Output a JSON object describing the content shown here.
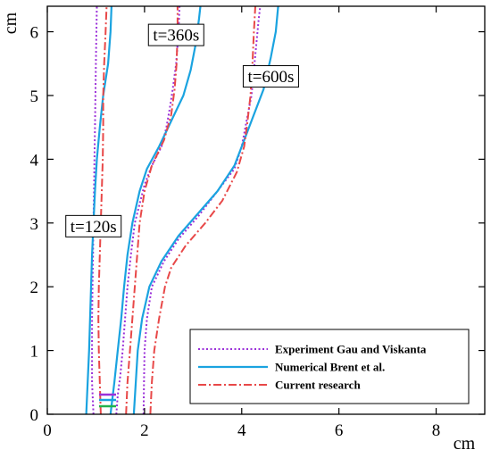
{
  "chart_data": {
    "type": "line",
    "title": "",
    "xlabel": "cm",
    "ylabel": "cm",
    "xlim": [
      0,
      9
    ],
    "ylim": [
      0,
      6.4
    ],
    "xticks": [
      0,
      2,
      4,
      6,
      8
    ],
    "yticks": [
      0,
      1,
      2,
      3,
      4,
      5,
      6
    ],
    "grid": false,
    "legend_position": "bottom-right",
    "series": [
      {
        "name": "Experiment Gau and Viskanta",
        "color": "#9b30d9",
        "style": "dotted",
        "curves": [
          [
            [
              0.95,
              0
            ],
            [
              0.92,
              0.5
            ],
            [
              0.92,
              1.0
            ],
            [
              0.92,
              1.5
            ],
            [
              0.93,
              2.0
            ],
            [
              0.94,
              2.5
            ],
            [
              0.95,
              3.0
            ],
            [
              0.96,
              3.5
            ],
            [
              0.97,
              4.0
            ],
            [
              0.98,
              4.5
            ],
            [
              0.99,
              5.0
            ],
            [
              1.0,
              5.5
            ],
            [
              1.01,
              6.0
            ],
            [
              1.02,
              6.4
            ]
          ],
          [
            [
              1.42,
              0
            ],
            [
              1.45,
              0.3
            ],
            [
              1.5,
              0.6
            ],
            [
              1.55,
              1.0
            ],
            [
              1.6,
              1.5
            ],
            [
              1.65,
              2.0
            ],
            [
              1.72,
              2.5
            ],
            [
              1.8,
              3.0
            ],
            [
              1.9,
              3.3
            ],
            [
              2.0,
              3.6
            ],
            [
              2.15,
              3.9
            ],
            [
              2.35,
              4.2
            ],
            [
              2.45,
              4.5
            ],
            [
              2.52,
              4.8
            ],
            [
              2.58,
              5.1
            ],
            [
              2.65,
              5.5
            ],
            [
              2.7,
              6.0
            ],
            [
              2.72,
              6.4
            ]
          ],
          [
            [
              1.98,
              0
            ],
            [
              1.99,
              0.5
            ],
            [
              2.0,
              1.0
            ],
            [
              2.05,
              1.5
            ],
            [
              2.15,
              2.0
            ],
            [
              2.4,
              2.4
            ],
            [
              2.7,
              2.75
            ],
            [
              3.1,
              3.1
            ],
            [
              3.5,
              3.5
            ],
            [
              3.85,
              3.85
            ],
            [
              4.0,
              4.2
            ],
            [
              4.1,
              4.6
            ],
            [
              4.2,
              5.0
            ],
            [
              4.25,
              5.4
            ],
            [
              4.3,
              5.8
            ],
            [
              4.35,
              6.2
            ],
            [
              4.38,
              6.4
            ]
          ]
        ]
      },
      {
        "name": "Numerical Brent et al.",
        "color": "#1aa3e0",
        "style": "solid",
        "curves": [
          [
            [
              0.8,
              0
            ],
            [
              0.83,
              0.5
            ],
            [
              0.86,
              1.0
            ],
            [
              0.88,
              1.5
            ],
            [
              0.9,
              2.0
            ],
            [
              0.92,
              2.5
            ],
            [
              0.95,
              3.0
            ],
            [
              0.98,
              3.5
            ],
            [
              1.02,
              4.0
            ],
            [
              1.08,
              4.5
            ],
            [
              1.15,
              5.0
            ],
            [
              1.25,
              5.5
            ],
            [
              1.3,
              6.0
            ],
            [
              1.32,
              6.4
            ]
          ],
          [
            [
              1.3,
              0
            ],
            [
              1.38,
              0.5
            ],
            [
              1.45,
              1.0
            ],
            [
              1.52,
              1.5
            ],
            [
              1.58,
              2.0
            ],
            [
              1.65,
              2.5
            ],
            [
              1.75,
              3.0
            ],
            [
              1.9,
              3.5
            ],
            [
              2.05,
              3.85
            ],
            [
              2.3,
              4.2
            ],
            [
              2.55,
              4.6
            ],
            [
              2.8,
              5.0
            ],
            [
              2.95,
              5.4
            ],
            [
              3.05,
              5.8
            ],
            [
              3.12,
              6.2
            ],
            [
              3.15,
              6.4
            ]
          ],
          [
            [
              1.78,
              0
            ],
            [
              1.82,
              0.5
            ],
            [
              1.86,
              1.0
            ],
            [
              1.95,
              1.5
            ],
            [
              2.1,
              2.0
            ],
            [
              2.35,
              2.4
            ],
            [
              2.7,
              2.8
            ],
            [
              3.1,
              3.15
            ],
            [
              3.5,
              3.5
            ],
            [
              3.85,
              3.9
            ],
            [
              4.05,
              4.3
            ],
            [
              4.25,
              4.7
            ],
            [
              4.45,
              5.1
            ],
            [
              4.6,
              5.6
            ],
            [
              4.7,
              6.0
            ],
            [
              4.75,
              6.4
            ]
          ]
        ]
      },
      {
        "name": "Current research",
        "color": "#e84848",
        "style": "dashdot",
        "curves": [
          [
            [
              1.1,
              0
            ],
            [
              1.08,
              0.5
            ],
            [
              1.06,
              1.0
            ],
            [
              1.05,
              1.5
            ],
            [
              1.06,
              2.0
            ],
            [
              1.08,
              2.5
            ],
            [
              1.1,
              3.0
            ],
            [
              1.12,
              3.5
            ],
            [
              1.14,
              4.0
            ],
            [
              1.15,
              4.5
            ],
            [
              1.15,
              5.0
            ],
            [
              1.17,
              5.5
            ],
            [
              1.2,
              6.0
            ],
            [
              1.22,
              6.4
            ]
          ],
          [
            [
              1.62,
              0
            ],
            [
              1.65,
              0.5
            ],
            [
              1.7,
              1.0
            ],
            [
              1.75,
              1.5
            ],
            [
              1.8,
              2.0
            ],
            [
              1.85,
              2.5
            ],
            [
              1.9,
              3.0
            ],
            [
              2.0,
              3.5
            ],
            [
              2.15,
              3.9
            ],
            [
              2.4,
              4.3
            ],
            [
              2.55,
              4.7
            ],
            [
              2.62,
              5.1
            ],
            [
              2.66,
              5.5
            ],
            [
              2.68,
              6.0
            ],
            [
              2.68,
              6.4
            ]
          ],
          [
            [
              2.12,
              0
            ],
            [
              2.15,
              0.5
            ],
            [
              2.2,
              1.0
            ],
            [
              2.3,
              1.5
            ],
            [
              2.42,
              2.0
            ],
            [
              2.55,
              2.3
            ],
            [
              2.85,
              2.65
            ],
            [
              3.25,
              3.0
            ],
            [
              3.6,
              3.35
            ],
            [
              3.9,
              3.8
            ],
            [
              4.05,
              4.2
            ],
            [
              4.12,
              4.6
            ],
            [
              4.18,
              5.0
            ],
            [
              4.22,
              5.5
            ],
            [
              4.25,
              6.0
            ],
            [
              4.28,
              6.4
            ]
          ]
        ]
      }
    ],
    "annotations": [
      {
        "text": "t=120s",
        "x": 0.95,
        "y": 2.95
      },
      {
        "text": "t=360s",
        "x": 2.65,
        "y": 5.95
      },
      {
        "text": "t=600s",
        "x": 4.6,
        "y": 5.3
      }
    ]
  }
}
